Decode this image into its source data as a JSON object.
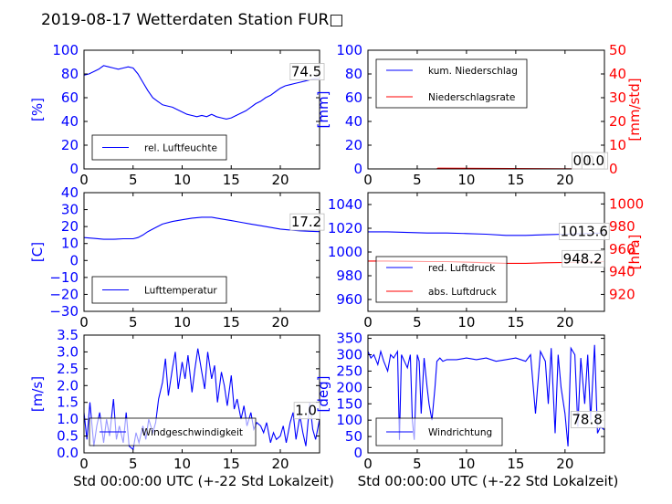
{
  "title": "2019-08-17 Wetterdaten Station FUR□",
  "colors": {
    "left_axis": "#0000ff",
    "right_axis": "#ff0000",
    "series_blue": "#0000ff",
    "series_red": "#ff0000"
  },
  "chart_data": [
    {
      "id": "humidity",
      "type": "line",
      "xlim": [
        0,
        24
      ],
      "xticks": [
        "0",
        "5",
        "10",
        "15",
        "20"
      ],
      "ylim": [
        0,
        100
      ],
      "yticks": [
        "0",
        "20",
        "40",
        "60",
        "80",
        "100"
      ],
      "ylabel": "[%]",
      "grid": false,
      "legend_position": "lower-left",
      "series": [
        {
          "name": "rel. Luftfeuchte",
          "color": "#0000ff",
          "x": [
            0,
            0.5,
            1,
            1.5,
            2,
            2.5,
            3,
            3.5,
            4,
            4.5,
            5,
            5.5,
            6,
            6.5,
            7,
            7.5,
            8,
            8.5,
            9,
            9.5,
            10,
            10.5,
            11,
            11.5,
            12,
            12.5,
            13,
            13.5,
            14,
            14.5,
            15,
            15.5,
            16,
            16.5,
            17,
            17.5,
            18,
            18.5,
            19,
            19.5,
            20,
            20.5,
            21,
            21.5,
            22,
            22.5,
            23,
            23.5,
            24
          ],
          "y": [
            79,
            80,
            82,
            84,
            87,
            86,
            85,
            84,
            85,
            86,
            85,
            80,
            73,
            66,
            60,
            57,
            54,
            53,
            52,
            50,
            48,
            46,
            45,
            44,
            45,
            44,
            46,
            44,
            43,
            42,
            43,
            45,
            47,
            49,
            52,
            55,
            57,
            60,
            62,
            65,
            68,
            70,
            71,
            72,
            73,
            74,
            75,
            76,
            76
          ]
        }
      ],
      "annotations": [
        {
          "text": "74.5",
          "x": 21.1,
          "y": 78
        }
      ]
    },
    {
      "id": "precip",
      "type": "line",
      "xlim": [
        0,
        24
      ],
      "xticks": [
        "0",
        "5",
        "10",
        "15",
        "20"
      ],
      "ylim": [
        0,
        100
      ],
      "yticks": [
        "0",
        "20",
        "40",
        "60",
        "80",
        "100"
      ],
      "ylabel": "[mm]",
      "y2lim": [
        0,
        50
      ],
      "y2ticks": [
        "0",
        "10",
        "20",
        "30",
        "40",
        "50"
      ],
      "y2label": "[mm/std]",
      "grid": false,
      "legend_position": "upper-left",
      "series": [
        {
          "name": "kum. Niederschlag",
          "color": "#0000ff",
          "axis": "left",
          "x": [
            0,
            24
          ],
          "y": [
            0,
            0
          ]
        },
        {
          "name": "Niederschlagsrate",
          "color": "#ff0000",
          "axis": "right",
          "x": [
            0,
            7,
            7.1,
            24
          ],
          "y": [
            0,
            0,
            0.3,
            0
          ]
        }
      ],
      "annotations": [
        {
          "text": "0.0",
          "x": 20.8,
          "y": 3
        },
        {
          "text": "0.0",
          "x": 21.8,
          "y": 3
        }
      ]
    },
    {
      "id": "temperature",
      "type": "line",
      "xlim": [
        0,
        24
      ],
      "xticks": [
        "0",
        "5",
        "10",
        "15",
        "20"
      ],
      "ylim": [
        -30,
        40
      ],
      "yticks": [
        "−30",
        "−20",
        "−10",
        "0",
        "10",
        "20",
        "30",
        "40"
      ],
      "ylabel": "[C]",
      "grid": false,
      "legend_position": "lower-left",
      "series": [
        {
          "name": "Lufttemperatur",
          "color": "#0000ff",
          "x": [
            0,
            1,
            2,
            3,
            4,
            5,
            5.5,
            6,
            6.5,
            7,
            7.5,
            8,
            9,
            10,
            11,
            12,
            13,
            14,
            15,
            16,
            17,
            18,
            19,
            20,
            21,
            22,
            23,
            24
          ],
          "y": [
            13.5,
            13,
            12.5,
            12.5,
            12.8,
            12.8,
            13.5,
            15,
            17,
            18.5,
            20,
            21.5,
            23,
            24,
            25,
            25.5,
            25.5,
            24.5,
            23.5,
            22.5,
            21.5,
            20.5,
            19.5,
            18.5,
            18,
            17.5,
            17.2,
            17
          ]
        }
      ],
      "annotations": [
        {
          "text": "17.2",
          "x": 21.1,
          "y": 20
        }
      ]
    },
    {
      "id": "pressure",
      "type": "line",
      "xlim": [
        0,
        24
      ],
      "xticks": [
        "0",
        "5",
        "10",
        "15",
        "20"
      ],
      "ylim": [
        950,
        1050
      ],
      "yticks": [
        "960",
        "980",
        "1000",
        "1020",
        "1040"
      ],
      "ylabel": "",
      "y2lim": [
        905,
        1010
      ],
      "y2ticks": [
        "920",
        "940",
        "960",
        "980",
        "1000"
      ],
      "y2label": "[hPa]",
      "grid": false,
      "legend_position": "lower-left",
      "series": [
        {
          "name": "red. Luftdruck",
          "color": "#0000ff",
          "axis": "left",
          "x": [
            0,
            2,
            4,
            6,
            8,
            10,
            12,
            14,
            16,
            18,
            20,
            22,
            24
          ],
          "y": [
            1017,
            1017,
            1016.5,
            1016,
            1016,
            1015.5,
            1015,
            1014,
            1014,
            1014.5,
            1015,
            1015.5,
            1016
          ]
        },
        {
          "name": "abs. Luftdruck",
          "color": "#ff0000",
          "axis": "right",
          "x": [
            0,
            2,
            4,
            6,
            8,
            10,
            12,
            14,
            16,
            18,
            20,
            22,
            24
          ],
          "y": [
            949.5,
            949.5,
            949.3,
            949,
            949,
            948.5,
            948,
            947.5,
            947.5,
            948,
            948.2,
            948.5,
            949
          ]
        }
      ],
      "annotations": [
        {
          "text": "1013.6",
          "x": 19.5,
          "y": 1013.5
        },
        {
          "text": "948.2",
          "x": 19.8,
          "y": 990.5
        }
      ]
    },
    {
      "id": "windspeed",
      "type": "line",
      "xlim": [
        0,
        24
      ],
      "xticks": [
        "0",
        "5",
        "10",
        "15",
        "20"
      ],
      "ylim": [
        0,
        3.5
      ],
      "yticks": [
        "0.0",
        "0.5",
        "1.0",
        "1.5",
        "2.0",
        "2.5",
        "3.0",
        "3.5"
      ],
      "ylabel": "[m/s]",
      "xlabel": "Std 00:00:00 UTC (+-22 Std Lokalzeit)",
      "grid": false,
      "legend_position": "lower-center",
      "series": [
        {
          "name": "Windgeschwindigkeit",
          "color": "#0000ff",
          "x": [
            0,
            0.3,
            0.6,
            1,
            1.3,
            1.6,
            2,
            2.3,
            2.6,
            3,
            3.3,
            3.6,
            4,
            4.3,
            4.6,
            5,
            5.3,
            5.6,
            6,
            6.3,
            6.6,
            7,
            7.3,
            7.6,
            8,
            8.3,
            8.6,
            9,
            9.3,
            9.6,
            10,
            10.3,
            10.6,
            11,
            11.3,
            11.6,
            12,
            12.3,
            12.6,
            13,
            13.3,
            13.6,
            14,
            14.3,
            14.6,
            15,
            15.3,
            15.6,
            16,
            16.3,
            16.6,
            17,
            17.3,
            17.6,
            18,
            18.3,
            18.6,
            19,
            19.3,
            19.6,
            20,
            20.3,
            20.6,
            21,
            21.3,
            21.6,
            22,
            22.3,
            22.6,
            23,
            23.3,
            23.6,
            24
          ],
          "y": [
            1.2,
            0.4,
            1.5,
            0.2,
            0.8,
            1.2,
            0.3,
            1,
            0.5,
            1.6,
            0.4,
            0.8,
            0.3,
            1.2,
            0.2,
            0.1,
            0.6,
            0.3,
            0.8,
            0.4,
            1,
            0.6,
            0.9,
            1.6,
            2.1,
            2.8,
            1.7,
            2.5,
            3,
            1.9,
            2.7,
            2.2,
            2.9,
            1.8,
            2.5,
            3.1,
            2.4,
            1.9,
            3,
            2.2,
            2.6,
            1.5,
            2.4,
            2,
            1.4,
            2.3,
            1.3,
            1.6,
            1,
            1.4,
            0.8,
            1.2,
            0.7,
            0.9,
            0.8,
            0.6,
            0.9,
            0.3,
            0.6,
            0.4,
            0.5,
            0.8,
            0.3,
            0.9,
            1.2,
            0.4,
            1.1,
            0.6,
            0.2,
            1.5,
            0.7,
            0.4,
            1
          ]
        }
      ],
      "annotations": [
        {
          "text": "1.0",
          "x": 21.5,
          "y": 1.12
        }
      ]
    },
    {
      "id": "winddir",
      "type": "line",
      "xlim": [
        0,
        24
      ],
      "xticks": [
        "0",
        "5",
        "10",
        "15",
        "20"
      ],
      "ylim": [
        0,
        360
      ],
      "yticks": [
        "0",
        "50",
        "100",
        "150",
        "200",
        "250",
        "300",
        "350"
      ],
      "ylabel": "[deg]",
      "xlabel": "Std 00:00:00 UTC (+-22 Std Lokalzeit)",
      "grid": false,
      "legend_position": "lower-left",
      "series": [
        {
          "name": "Windrichtung",
          "color": "#0000ff",
          "x": [
            0,
            0.3,
            0.6,
            1,
            1.3,
            1.6,
            2,
            2.3,
            2.6,
            3,
            3.2,
            3.4,
            3.7,
            4,
            4.3,
            4.5,
            4.7,
            5,
            5.2,
            5.4,
            5.7,
            6,
            6.2,
            6.5,
            6.8,
            7,
            7.3,
            7.6,
            8,
            9,
            10,
            11,
            12,
            13,
            14,
            15,
            16,
            16.5,
            17,
            17.5,
            18,
            18.3,
            18.6,
            19,
            19.3,
            19.6,
            20,
            20.3,
            20.6,
            21,
            21.3,
            21.6,
            22,
            22.3,
            22.6,
            23,
            23.3,
            23.6,
            24
          ],
          "y": [
            310,
            290,
            300,
            270,
            310,
            280,
            250,
            300,
            290,
            310,
            40,
            300,
            280,
            260,
            300,
            100,
            40,
            300,
            280,
            120,
            290,
            200,
            150,
            100,
            200,
            280,
            290,
            280,
            285,
            285,
            290,
            285,
            290,
            280,
            285,
            290,
            280,
            300,
            120,
            310,
            280,
            150,
            320,
            60,
            300,
            200,
            120,
            20,
            320,
            300,
            80,
            290,
            150,
            300,
            100,
            330,
            60,
            80,
            70
          ]
        }
      ],
      "annotations": [
        {
          "text": "78.8",
          "x": 20.7,
          "y": 88
        }
      ]
    }
  ]
}
